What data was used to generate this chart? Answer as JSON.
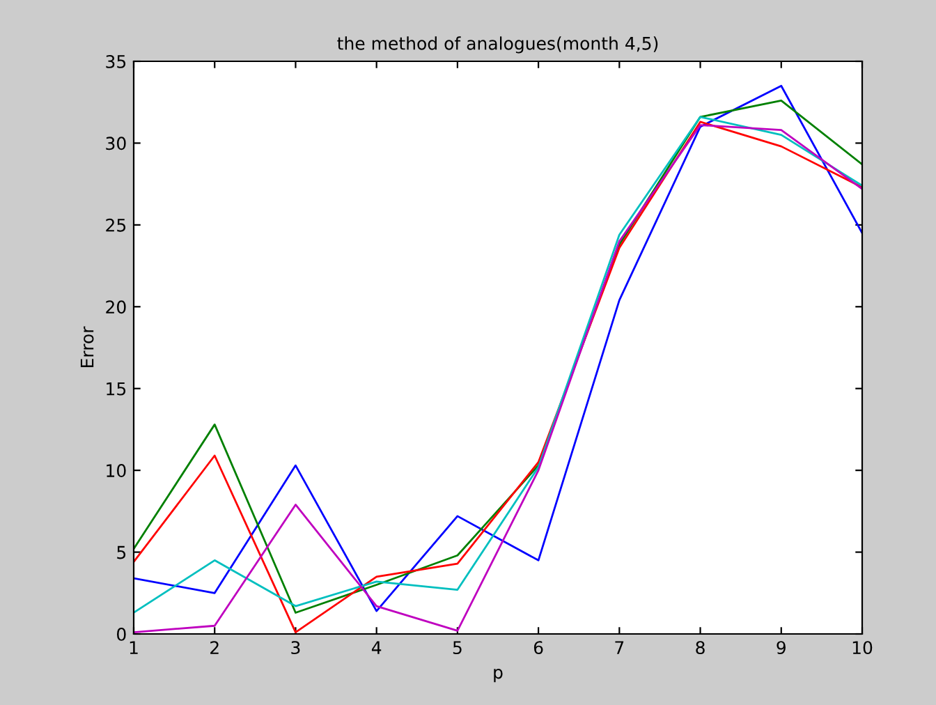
{
  "chart_data": {
    "type": "line",
    "title": "the method of analogues(month 4,5)",
    "xlabel": "p",
    "ylabel": "Error",
    "x": [
      1,
      2,
      3,
      4,
      5,
      6,
      7,
      8,
      9,
      10
    ],
    "series": [
      {
        "color": "#0000ff",
        "values": [
          3.4,
          2.5,
          10.3,
          1.4,
          7.2,
          4.5,
          20.4,
          31.0,
          33.5,
          24.5
        ]
      },
      {
        "color": "#008000",
        "values": [
          5.2,
          12.8,
          1.3,
          3.0,
          4.8,
          10.3,
          23.8,
          31.6,
          32.6,
          28.7
        ]
      },
      {
        "color": "#ff0000",
        "values": [
          4.4,
          10.9,
          0.1,
          3.5,
          4.3,
          10.5,
          23.6,
          31.3,
          29.8,
          27.3
        ]
      },
      {
        "color": "#00bfbf",
        "values": [
          1.3,
          4.5,
          1.7,
          3.2,
          2.7,
          10.2,
          24.4,
          31.6,
          30.5,
          27.4
        ]
      },
      {
        "color": "#bf00bf",
        "values": [
          0.1,
          0.5,
          7.9,
          1.7,
          0.2,
          10.0,
          24.0,
          31.1,
          30.8,
          27.2
        ]
      }
    ],
    "xlim": [
      1,
      10
    ],
    "xticks": [
      1,
      2,
      3,
      4,
      5,
      6,
      7,
      8,
      9,
      10
    ],
    "ylim": [
      0,
      35
    ],
    "yticks": [
      0,
      5,
      10,
      15,
      20,
      25,
      30,
      35
    ],
    "grid": false,
    "marker": "none",
    "line_style": "solid"
  }
}
